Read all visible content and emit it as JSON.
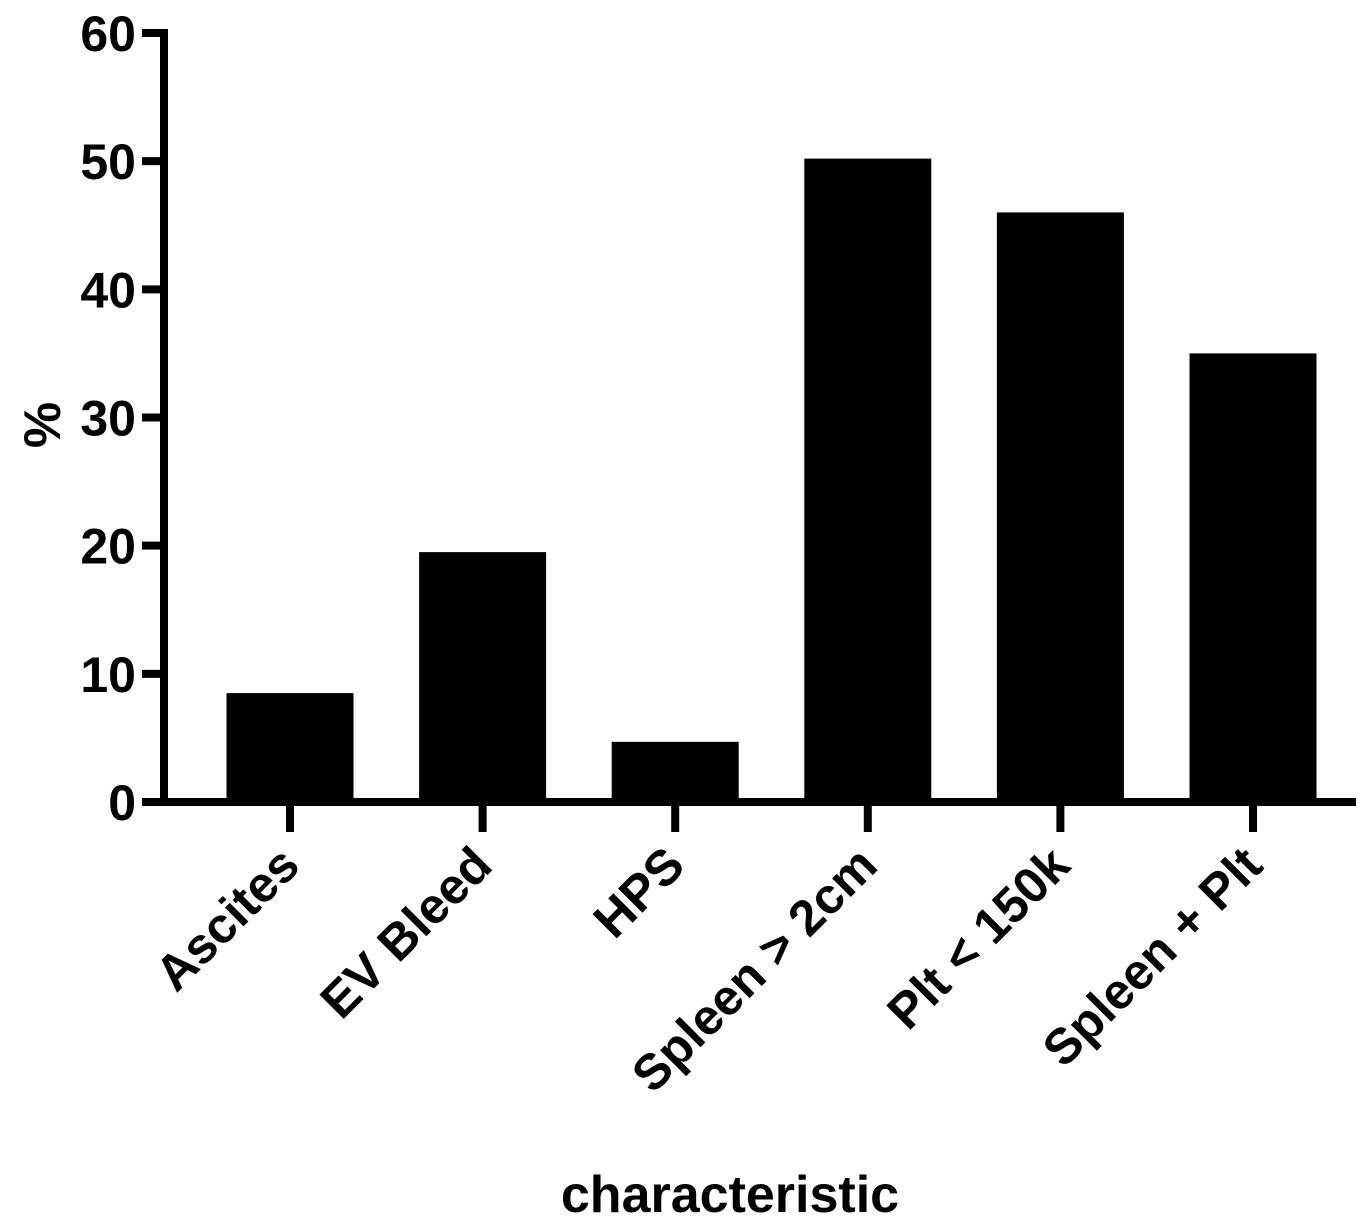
{
  "chart_data": {
    "type": "bar",
    "title": "",
    "xlabel": "characteristic",
    "ylabel": "%",
    "ylim": [
      0,
      60
    ],
    "yticks": [
      0,
      10,
      20,
      30,
      40,
      50,
      60
    ],
    "categories": [
      "Ascites",
      "EV Bleed",
      "HPS",
      "Spleen > 2cm",
      "Plt < 150k",
      "Spleen + Plt"
    ],
    "values": [
      8.5,
      19.5,
      4.7,
      50.2,
      46.0,
      35.0
    ],
    "grid": false,
    "legend": "none",
    "colors": {
      "bar": "#000000",
      "axis": "#000000",
      "background": "#ffffff"
    }
  }
}
